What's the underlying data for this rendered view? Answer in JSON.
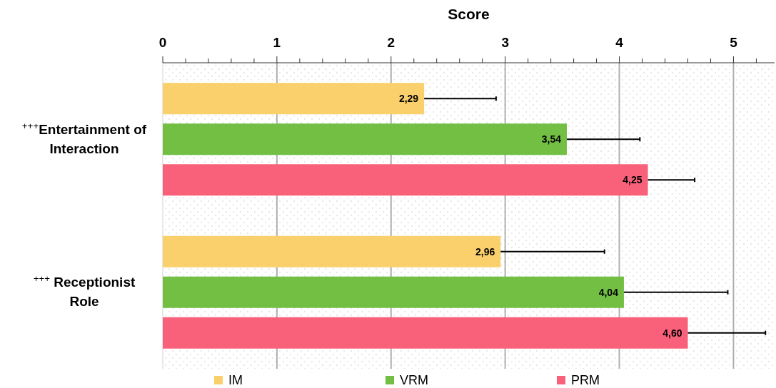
{
  "chart_data": {
    "type": "bar",
    "orientation": "horizontal",
    "title": "Score",
    "categories": [
      "$^{+++}$Entertainment of Interaction",
      "$^{+++}$ Receptionist Role"
    ],
    "series": [
      {
        "name": "IM",
        "color": "#fad06c",
        "values": [
          2.29,
          2.96
        ],
        "value_labels": [
          "2,29",
          "2,96"
        ],
        "errors": [
          [
            2.29,
            2.92
          ],
          [
            2.96,
            3.87
          ]
        ]
      },
      {
        "name": "VRM",
        "color": "#72bf44",
        "values": [
          3.54,
          4.04
        ],
        "value_labels": [
          "3,54",
          "4,04"
        ],
        "errors": [
          [
            3.54,
            4.18
          ],
          [
            4.04,
            4.95
          ]
        ]
      },
      {
        "name": "PRM",
        "color": "#f9607a",
        "values": [
          4.25,
          4.6
        ],
        "value_labels": [
          "4,25",
          "4,60"
        ],
        "errors": [
          [
            4.25,
            4.66
          ],
          [
            4.6,
            5.28
          ]
        ]
      }
    ],
    "xlim": [
      0,
      5.36
    ],
    "xticks": [
      0,
      {
        "value": 0.2,
        "label": null
      },
      {
        "value": 0.4,
        "label": null
      },
      {
        "value": 0.6,
        "label": null
      },
      {
        "value": 0.8,
        "label": null
      },
      1,
      {
        "value": 1.2,
        "label": null
      },
      {
        "value": 1.4,
        "label": null
      },
      {
        "value": 1.6,
        "label": null
      },
      {
        "value": 1.8,
        "label": null
      },
      2,
      {
        "value": 2.2,
        "label": null
      },
      {
        "value": 2.4,
        "label": null
      },
      {
        "value": 2.6,
        "label": null
      },
      {
        "value": 2.8,
        "label": null
      },
      3,
      {
        "value": 3.2,
        "label": null
      },
      {
        "value": 3.4,
        "label": null
      },
      {
        "value": 3.6,
        "label": null
      },
      {
        "value": 3.8,
        "label": null
      },
      4,
      {
        "value": 4.2,
        "label": null
      },
      {
        "value": 4.4,
        "label": null
      },
      {
        "value": 4.6,
        "label": null
      },
      {
        "value": 4.8,
        "label": null
      },
      5,
      {
        "value": 5.2,
        "label": null
      }
    ],
    "grid": "x",
    "legend": "bottom"
  }
}
